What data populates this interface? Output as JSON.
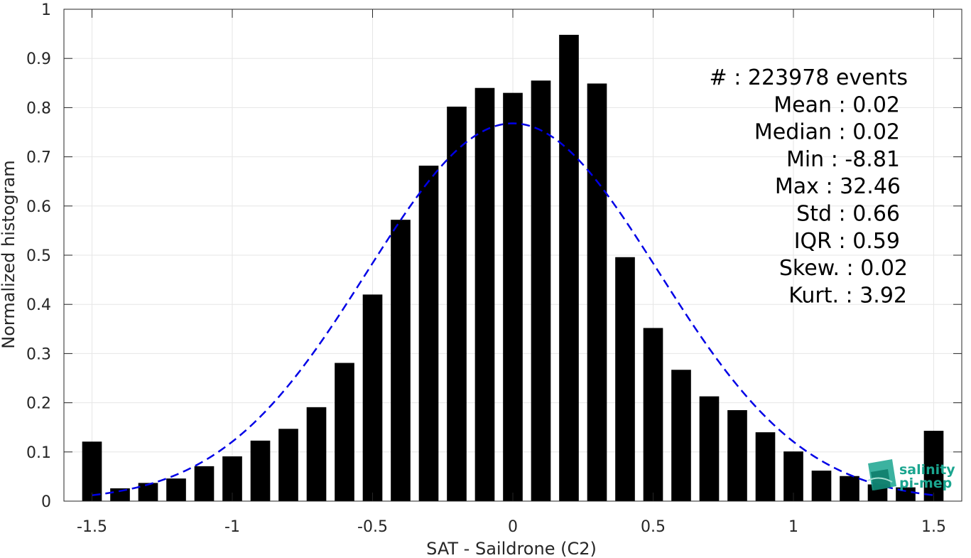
{
  "chart_data": {
    "type": "bar",
    "xlabel": "SAT - Saildrone (C2)",
    "ylabel": "Normalized histogram",
    "xlim": [
      -1.6,
      1.6
    ],
    "ylim": [
      0,
      1
    ],
    "grid": true,
    "x_ticks": [
      "-1.5",
      "-1",
      "-0.5",
      "0",
      "0.5",
      "1",
      "1.5"
    ],
    "y_ticks": [
      "0",
      "0.1",
      "0.2",
      "0.3",
      "0.4",
      "0.5",
      "0.6",
      "0.7",
      "0.8",
      "0.9",
      "1"
    ],
    "bar_color": "#000000",
    "x": [
      -1.5,
      -1.4,
      -1.3,
      -1.2,
      -1.1,
      -1.0,
      -0.9,
      -0.8,
      -0.7,
      -0.6,
      -0.5,
      -0.4,
      -0.3,
      -0.2,
      -0.1,
      0.0,
      0.1,
      0.2,
      0.3,
      0.4,
      0.5,
      0.6,
      0.7,
      0.8,
      0.9,
      1.0,
      1.1,
      1.2,
      1.3,
      1.4,
      1.5
    ],
    "values": [
      0.121,
      0.026,
      0.037,
      0.046,
      0.071,
      0.091,
      0.123,
      0.147,
      0.191,
      0.281,
      0.42,
      0.572,
      0.682,
      0.802,
      0.84,
      0.83,
      0.855,
      0.948,
      0.849,
      0.496,
      0.352,
      0.267,
      0.213,
      0.185,
      0.14,
      0.101,
      0.062,
      0.051,
      0.034,
      0.028,
      0.143
    ],
    "fit_curve": {
      "style": "dashed",
      "color": "#0000e6",
      "mean": 0.0,
      "std": 0.52,
      "peak": 0.768
    },
    "stats": [
      {
        "label": "#  : 223978 events"
      },
      {
        "label": "Mean : 0.02"
      },
      {
        "label": "Median : 0.02"
      },
      {
        "label": "Min : -8.81"
      },
      {
        "label": "Max : 32.46"
      },
      {
        "label": "Std : 0.66"
      },
      {
        "label": "IQR : 0.59"
      },
      {
        "label": "Skew. : 0.02"
      },
      {
        "label": "Kurt. : 3.92"
      }
    ]
  },
  "logo": {
    "line1": "salinity",
    "line2": "pi-mep",
    "color": "#1aa58f"
  }
}
